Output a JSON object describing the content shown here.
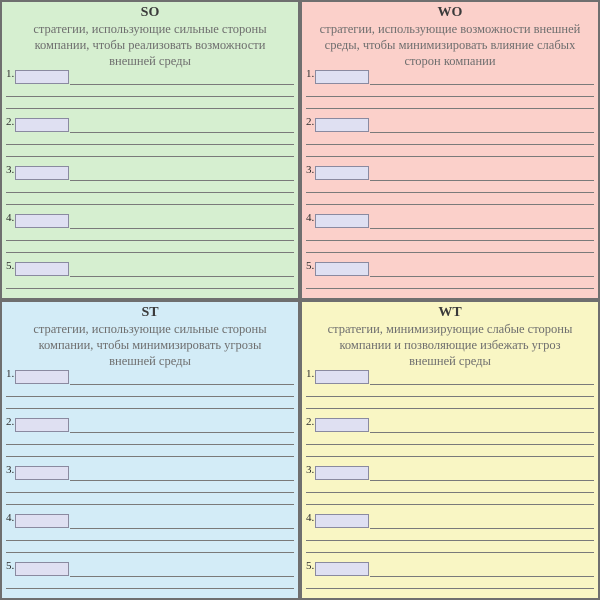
{
  "quadrants": [
    {
      "key": "so",
      "title": "SO",
      "description": "стратегии, использующие сильные стороны компании, чтобы реализовать возможности внешней среды",
      "items": [
        "1.",
        "2.",
        "3.",
        "4.",
        "5."
      ],
      "background": "#d6efd0"
    },
    {
      "key": "wo",
      "title": "WO",
      "description": "стратегии, использующие возможности внешней среды, чтобы минимизировать влияние слабых сторон компании",
      "items": [
        "1.",
        "2.",
        "3.",
        "4.",
        "5."
      ],
      "background": "#fbd0ca"
    },
    {
      "key": "st",
      "title": "ST",
      "description": "стратегии, использующие сильные стороны компании, чтобы минимизировать угрозы внешней среды",
      "items": [
        "1.",
        "2.",
        "3.",
        "4.",
        "5."
      ],
      "background": "#d3ecf7"
    },
    {
      "key": "wt",
      "title": "WT",
      "description": "стратегии, минимизирующие слабые стороны компании и позволяющие избежать угроз внешней среды",
      "items": [
        "1.",
        "2.",
        "3.",
        "4.",
        "5."
      ],
      "background": "#f9f6c4"
    }
  ]
}
